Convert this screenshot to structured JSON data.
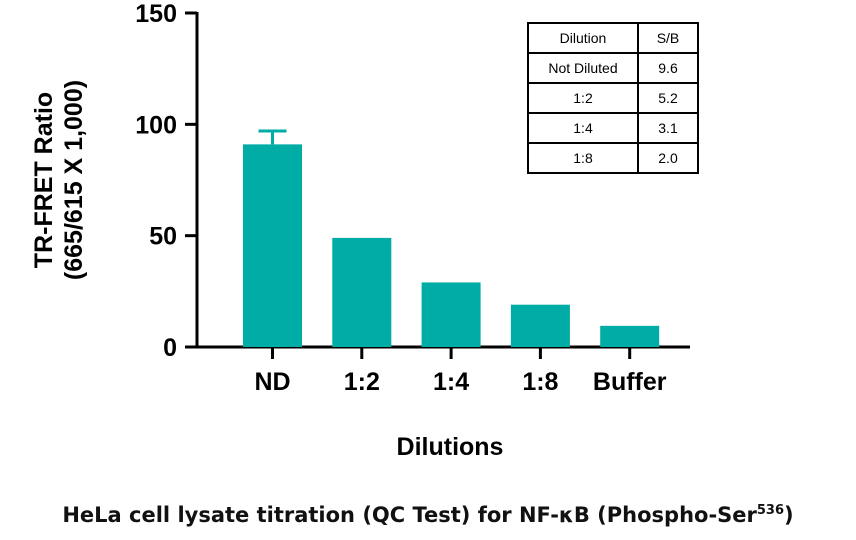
{
  "chart_data": {
    "type": "bar",
    "categories": [
      "ND",
      "1:2",
      "1:4",
      "1:8",
      "Buffer"
    ],
    "values": [
      91,
      49,
      29,
      19,
      9.5
    ],
    "error_upper": [
      97,
      null,
      null,
      null,
      null
    ],
    "xlabel": "Dilutions",
    "ylabel_line1": "TR-FRET Ratio",
    "ylabel_line2": "(665/615 X 1,000)",
    "ylim": [
      0,
      150
    ],
    "yticks": [
      0,
      50,
      100,
      150
    ],
    "grid": false,
    "bar_color": "#00aca6",
    "inset_table": {
      "headers": [
        "Dilution",
        "S/B"
      ],
      "rows": [
        [
          "Not Diluted",
          "9.6"
        ],
        [
          "1:2",
          "5.2"
        ],
        [
          "1:4",
          "3.1"
        ],
        [
          "1:8",
          "2.0"
        ]
      ],
      "placement": "top-right"
    }
  },
  "caption": {
    "text": "HeLa cell lysate titration (QC Test) for NF-κB (Phospho-Ser",
    "superscript": "536",
    "close": ")"
  }
}
